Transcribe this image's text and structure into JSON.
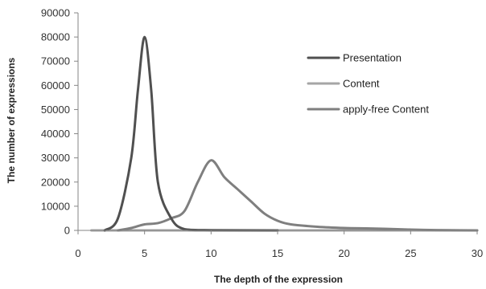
{
  "chart_data": {
    "type": "line",
    "title": "",
    "xlabel": "The depth of the expression",
    "ylabel": "The number of expressions",
    "xlim": [
      0,
      30
    ],
    "ylim": [
      0,
      90000
    ],
    "x_ticks": [
      0,
      5,
      10,
      15,
      20,
      25,
      30
    ],
    "y_ticks": [
      0,
      10000,
      20000,
      30000,
      40000,
      50000,
      60000,
      70000,
      80000,
      90000
    ],
    "x_tick_labels": [
      "0",
      "5",
      "10",
      "15",
      "20",
      "25",
      "30"
    ],
    "y_tick_labels": [
      "0",
      "10000",
      "20000",
      "30000",
      "40000",
      "50000",
      "60000",
      "70000",
      "80000",
      "90000"
    ],
    "grid": false,
    "legend_position": "top-right",
    "series": [
      {
        "name": "Presentation",
        "color": "#505050",
        "points": [
          [
            2,
            0
          ],
          [
            3,
            5000
          ],
          [
            4,
            30000
          ],
          [
            4.5,
            58000
          ],
          [
            5,
            80000
          ],
          [
            5.5,
            58000
          ],
          [
            6,
            20000
          ],
          [
            7,
            5000
          ],
          [
            8,
            500
          ],
          [
            10,
            100
          ],
          [
            15,
            0
          ]
        ]
      },
      {
        "name": "Content",
        "color": "#a6a6a6",
        "points": [
          [
            1,
            0
          ],
          [
            2,
            0
          ],
          [
            3,
            0
          ],
          [
            4,
            0
          ],
          [
            5,
            0
          ],
          [
            8,
            0
          ],
          [
            10,
            0
          ],
          [
            15,
            0
          ],
          [
            20,
            0
          ],
          [
            25,
            0
          ],
          [
            30,
            0
          ]
        ]
      },
      {
        "name": "apply-free Content",
        "color": "#7f7f7f",
        "points": [
          [
            3,
            0
          ],
          [
            4,
            1000
          ],
          [
            5,
            2500
          ],
          [
            6,
            3000
          ],
          [
            7,
            5000
          ],
          [
            8,
            8000
          ],
          [
            9,
            20000
          ],
          [
            10,
            29000
          ],
          [
            11,
            22000
          ],
          [
            12,
            17000
          ],
          [
            13,
            12000
          ],
          [
            14,
            7000
          ],
          [
            15,
            4000
          ],
          [
            16,
            2500
          ],
          [
            18,
            1500
          ],
          [
            20,
            1000
          ],
          [
            22,
            800
          ],
          [
            24,
            500
          ],
          [
            26,
            200
          ],
          [
            28,
            100
          ],
          [
            30,
            0
          ]
        ]
      }
    ]
  }
}
